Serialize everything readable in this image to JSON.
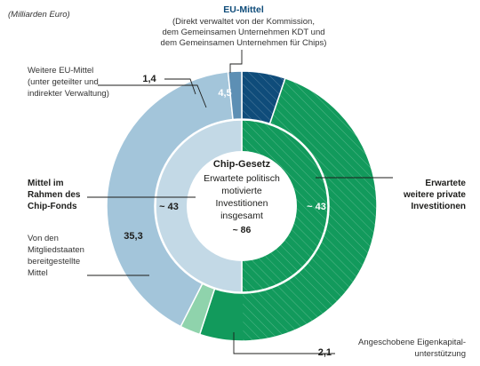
{
  "unit_note": "(Milliarden Euro)",
  "chart_data": {
    "type": "donut",
    "unit": "Milliarden Euro",
    "center": {
      "title": "Chip-Gesetz",
      "lines": [
        "Erwartete politisch",
        "motivierte",
        "Investitionen",
        "insgesamt"
      ],
      "total_label": "~ 86",
      "total": 86
    },
    "inner_ring": [
      {
        "label_text": "~ 43",
        "value": 43,
        "color": "#c3d9e6"
      },
      {
        "label_text": "~ 43",
        "value": 43,
        "color": "#129a5c"
      }
    ],
    "outer_ring": [
      {
        "value": 4.5,
        "value_label": "4,5",
        "color": "#0f4c7a",
        "title": "EU-Mittel",
        "description": [
          "(Direkt verwaltet von der Kommission,",
          "dem Gemeinsamen Unternehmen KDT und",
          "dem Gemeinsamen Unternehmen für Chips)"
        ]
      },
      {
        "value": 43,
        "value_label": "",
        "color": "#129a5c",
        "title": "",
        "description": [
          "Erwartete",
          "weitere private",
          "Investitionen"
        ]
      },
      {
        "value": 2.1,
        "value_label": "2,1",
        "color": "#8fd3ac",
        "title": "",
        "description": [
          "Angeschobene Eigenkapital-",
          "unterstützung"
        ]
      },
      {
        "value": 35.3,
        "value_label": "35,3",
        "color": "#a3c5da",
        "title": "",
        "description": [
          "Von den",
          "Mitgliedstaaten",
          "bereitgestellte",
          "Mittel"
        ]
      },
      {
        "value": 1.4,
        "value_label": "1,4",
        "color": "#5d8fb4",
        "title": "",
        "description": [
          "Weitere EU-Mittel",
          "(unter geteilter und",
          "indirekter Verwaltung)"
        ]
      }
    ],
    "group_label": [
      "Mittel im",
      "Rahmen des",
      "Chip-Fonds"
    ]
  }
}
